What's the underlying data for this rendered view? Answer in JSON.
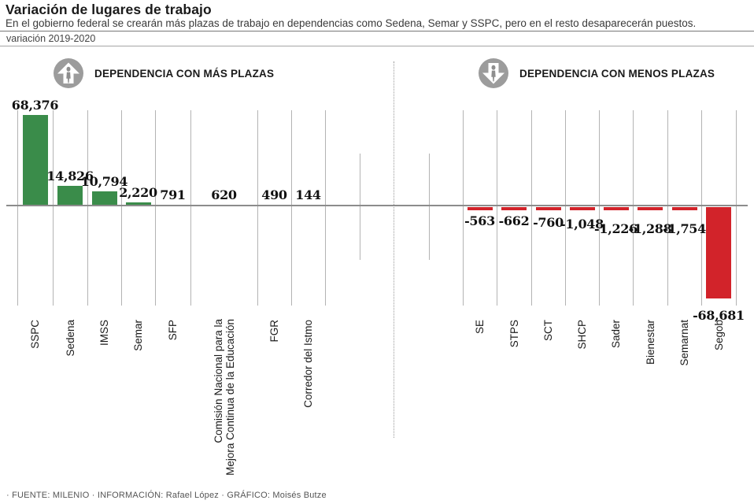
{
  "header": {
    "title": "Variación de lugares de trabajo",
    "subtitle": "En el gobierno federal se crearán más plazas de trabajo en dependencias como Sedena, Semar y SSPC, pero en el resto desaparecerán puestos.",
    "period": "variación 2019-2020"
  },
  "sections": {
    "more_label": "DEPENDENCIA CON MÁS PLAZAS",
    "less_label": "DEPENDENCIA CON MENOS PLAZAS"
  },
  "footer": {
    "credits": "· FUENTE: MILENIO · INFORMACIÓN: Rafael López · GRÁFICO: Moisés Butze"
  },
  "colors": {
    "positive_green": "#3a8c4a",
    "negative_red": "#d2232a",
    "grid_gray": "#b3b3b3",
    "axis_gray": "#8c8c8c",
    "icon_gray": "#9c9c9c"
  },
  "chart_data": {
    "type": "bar",
    "title": "Variación de lugares de trabajo",
    "period": "variación 2019-2020",
    "axis": "zero baseline, horizontal, values in plazas",
    "grid": "vertical column separators, dotted center divider",
    "ylim": [
      -68681,
      68376
    ],
    "series": [
      {
        "name": "DEPENDENCIA CON MÁS PLAZAS",
        "color": "#3a8c4a",
        "categories": [
          "SSPC",
          "Sedena",
          "IMSS",
          "Semar",
          "SFP",
          "Comisión Nacional para la\nMejora Continua de la Educación",
          "FGR",
          "Corredor del Istmo"
        ],
        "values": [
          68376,
          14826,
          10794,
          2220,
          791,
          620,
          490,
          144
        ],
        "value_labels": [
          "68,376",
          "14,826",
          "10,794",
          "2,220",
          "791",
          "620",
          "490",
          "144"
        ]
      },
      {
        "name": "DEPENDENCIA CON MENOS PLAZAS",
        "color": "#d2232a",
        "categories": [
          "SE",
          "STPS",
          "SCT",
          "SHCP",
          "Sader",
          "Bienestar",
          "Semarnat",
          "Segob"
        ],
        "values": [
          -563,
          -662,
          -760,
          -1048,
          -1226,
          -1288,
          -1754,
          -68681
        ],
        "value_labels": [
          "-563",
          "-662",
          "-760",
          "-1,048",
          "-1,226",
          "-1,288",
          "-1,754",
          "-68,681"
        ]
      }
    ]
  }
}
